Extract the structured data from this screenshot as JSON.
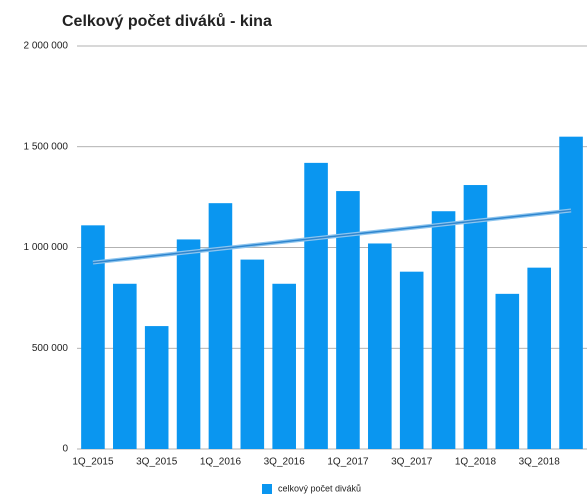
{
  "chart_data": {
    "type": "bar",
    "title": "Celkový počet diváků - kina",
    "categories": [
      "1Q_2015",
      null,
      "3Q_2015",
      null,
      "1Q_2016",
      null,
      "3Q_2016",
      null,
      "1Q_2017",
      null,
      "3Q_2017",
      null,
      "1Q_2018",
      null,
      "3Q_2018",
      null
    ],
    "series": [
      {
        "name": "celkový počet diváků",
        "color": "#0a96f0",
        "values": [
          1110000,
          820000,
          610000,
          1040000,
          1220000,
          940000,
          820000,
          1420000,
          1280000,
          1020000,
          880000,
          1180000,
          1310000,
          770000,
          900000,
          1550000
        ]
      }
    ],
    "ylim": [
      0,
      2000000
    ],
    "yticks": [
      0,
      {
        "value": 500000,
        "label": "500 000"
      },
      {
        "value": 1000000,
        "label": "1 000 000"
      },
      {
        "value": 1500000,
        "label": "1 500 000"
      },
      {
        "value": 2000000,
        "label": "2 000 000"
      }
    ],
    "grid": true,
    "trendline": "linear",
    "legend": "bottom"
  }
}
